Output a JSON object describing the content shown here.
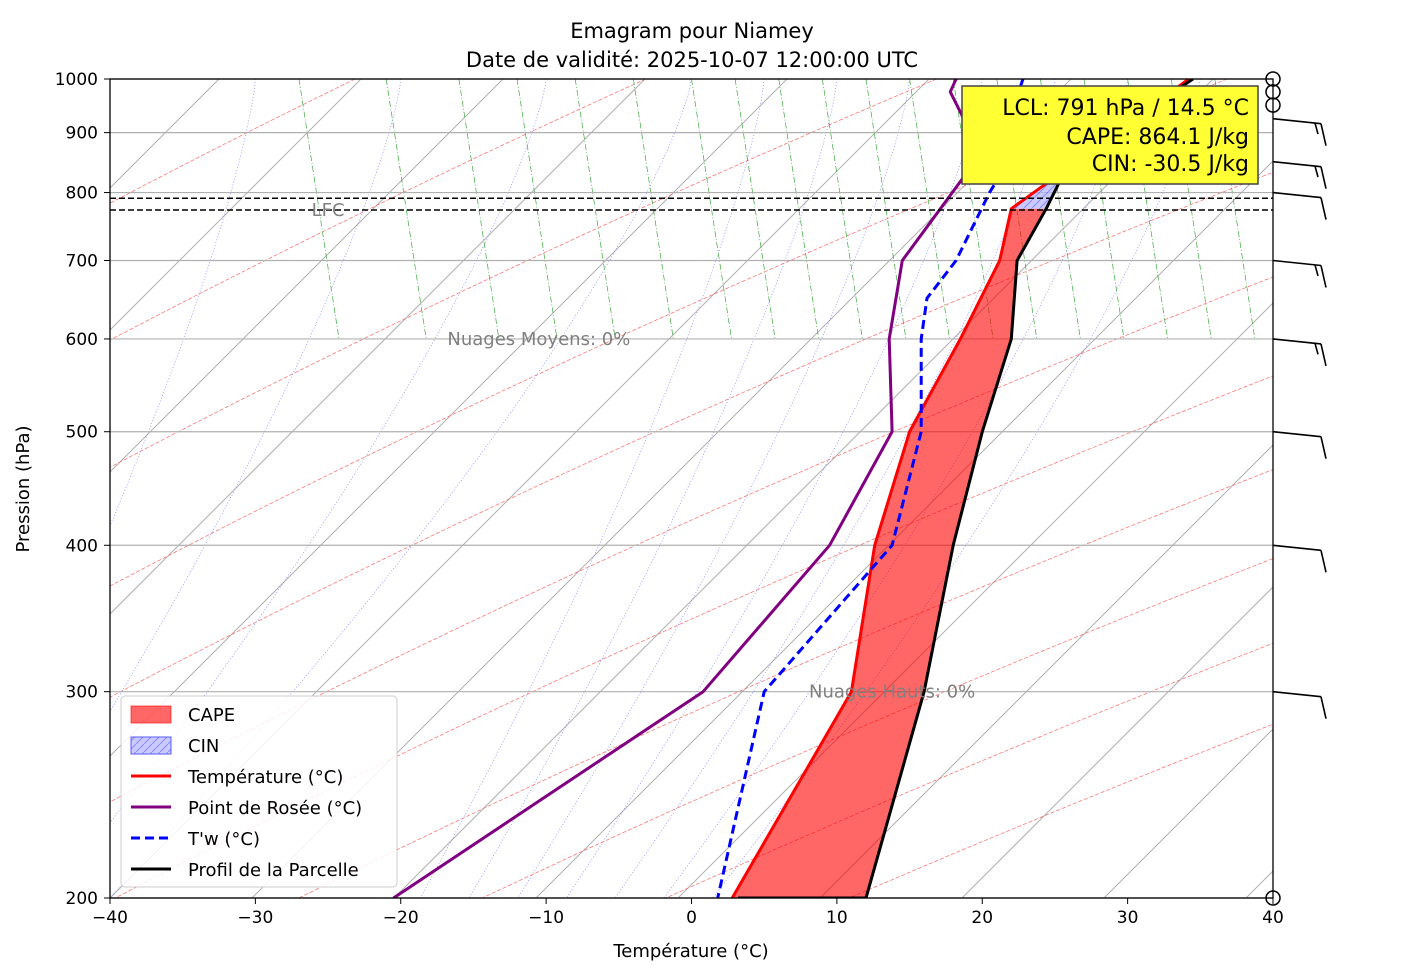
{
  "chart_data": {
    "type": "line",
    "title": "Emagram pour Niamey",
    "subtitle": "Date de validité: 2025-10-07 12:00:00 UTC",
    "xlabel": "Température (°C)",
    "ylabel": "Pression (hPa)",
    "xlim": [
      -40,
      40
    ],
    "ylim": [
      1000,
      200
    ],
    "y_scale": "log",
    "x_ticks": [
      -40,
      -30,
      -20,
      -10,
      0,
      10,
      20,
      30,
      40
    ],
    "x_tick_labels": [
      "−40",
      "−30",
      "−20",
      "−10",
      "0",
      "10",
      "20",
      "30",
      "40"
    ],
    "y_ticks": [
      1000,
      900,
      800,
      700,
      600,
      500,
      400,
      300,
      200
    ],
    "y_tick_labels": [
      "1000",
      "900",
      "800",
      "700",
      "600",
      "500",
      "400",
      "300",
      "200"
    ],
    "grid": true,
    "info_box": {
      "lines": [
        "LCL: 791 hPa / 14.5 °C",
        "CAPE: 864.1 J/kg",
        "CIN: -30.5 J/kg"
      ],
      "background": "#ffff33"
    },
    "annotations": [
      {
        "text": "Nuages Hauts: 0%",
        "x": 13.8,
        "y": 300
      },
      {
        "text": "Nuages Moyens: 0%",
        "x": -10.5,
        "y": 600
      },
      {
        "text": "LFC",
        "x": -25,
        "y": 773
      }
    ],
    "level_lines": [
      {
        "name": "LCL",
        "pressure": 791
      },
      {
        "name": "LFC",
        "pressure": 773
      }
    ],
    "legend": {
      "position": "lower-left",
      "entries": [
        {
          "label": "CAPE",
          "kind": "patch",
          "color": "#ff0000"
        },
        {
          "label": "CIN",
          "kind": "patch-hatched",
          "color": "#0000ff"
        },
        {
          "label": "Température (°C)",
          "kind": "line",
          "color": "#ff0000"
        },
        {
          "label": "Point de Rosée (°C)",
          "kind": "line",
          "color": "#800080"
        },
        {
          "label": "T'w (°C)",
          "kind": "dashed",
          "color": "#0000ff"
        },
        {
          "label": "Profil de la Parcelle",
          "kind": "line",
          "color": "#000000"
        }
      ]
    },
    "series": [
      {
        "name": "Température (°C)",
        "color": "#ff0000",
        "x": [
          34.2,
          33.0,
          26.5,
          22.0,
          21.2,
          18.5,
          15.0,
          12.6,
          11.0,
          2.8
        ],
        "y": [
          1000,
          975,
          850,
          775,
          700,
          600,
          500,
          400,
          300,
          200
        ]
      },
      {
        "name": "Point de Rosée (°C)",
        "color": "#800080",
        "x": [
          18.2,
          17.8,
          19.2,
          19.5,
          14.5,
          13.6,
          13.8,
          9.5,
          0.8,
          -20.5
        ],
        "y": [
          1000,
          975,
          900,
          850,
          700,
          600,
          500,
          400,
          300,
          200
        ]
      },
      {
        "name": "T'w (°C)",
        "color": "#0000ff",
        "x": [
          22.8,
          22.2,
          22.0,
          21.8,
          20.5,
          18.2,
          16.2,
          15.8,
          15.8,
          13.8,
          5.0,
          1.8
        ],
        "y": [
          1000,
          950,
          900,
          850,
          800,
          700,
          650,
          600,
          500,
          400,
          300,
          200
        ]
      },
      {
        "name": "Profil de la Parcelle",
        "color": "#000000",
        "x": [
          34.5,
          26.0,
          24.4,
          22.4,
          22.0,
          20.0,
          18.0,
          16.0,
          12.0,
          3.2
        ],
        "y": [
          1000,
          850,
          775,
          700,
          600,
          500,
          400,
          300,
          200,
          200
        ]
      }
    ],
    "wind_barbs": [
      {
        "pressure": 1000,
        "speed_kt": 0
      },
      {
        "pressure": 975,
        "speed_kt": 0
      },
      {
        "pressure": 950,
        "speed_kt": 0
      },
      {
        "pressure": 925,
        "speed_kt": 15
      },
      {
        "pressure": 850,
        "speed_kt": 15
      },
      {
        "pressure": 800,
        "speed_kt": 10
      },
      {
        "pressure": 700,
        "speed_kt": 15
      },
      {
        "pressure": 600,
        "speed_kt": 15
      },
      {
        "pressure": 500,
        "speed_kt": 10
      },
      {
        "pressure": 400,
        "speed_kt": 10
      },
      {
        "pressure": 300,
        "speed_kt": 10
      },
      {
        "pressure": 200,
        "speed_kt": 0
      }
    ]
  }
}
